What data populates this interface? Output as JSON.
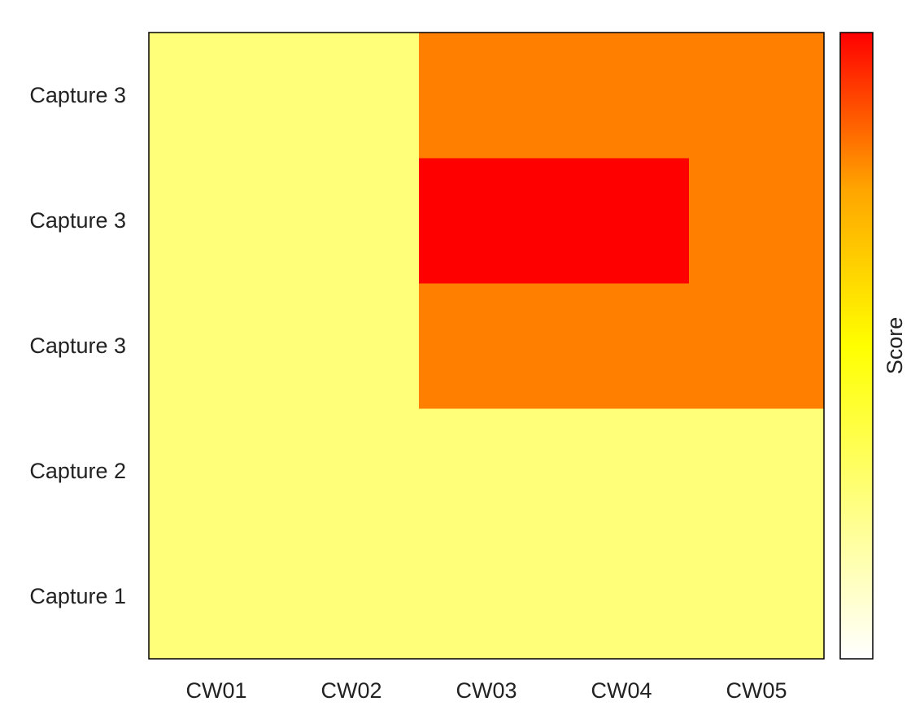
{
  "chart_data": {
    "type": "heatmap",
    "title": "",
    "xlabel": "",
    "ylabel": "",
    "x_categories": [
      "CW01",
      "CW02",
      "CW03",
      "CW04",
      "CW05"
    ],
    "y_categories_bottom_to_top": [
      "Capture 1",
      "Capture 2",
      "Capture 3",
      "Capture 3",
      "Capture 3"
    ],
    "values_bottom_to_top": [
      [
        0.5,
        0.5,
        0.5,
        0.5,
        0.5
      ],
      [
        0.5,
        0.5,
        0.5,
        0.5,
        0.5
      ],
      [
        0.5,
        0.5,
        0.85,
        0.85,
        0.85
      ],
      [
        0.5,
        0.5,
        1.0,
        1.0,
        0.85
      ],
      [
        0.5,
        0.5,
        0.85,
        0.85,
        0.85
      ]
    ],
    "colorbar": {
      "label": "Score",
      "range": [
        0,
        1
      ],
      "colormap": [
        "#ffffff",
        "#ffff00",
        "#ffa500",
        "#ff0000"
      ]
    },
    "grid": false
  }
}
